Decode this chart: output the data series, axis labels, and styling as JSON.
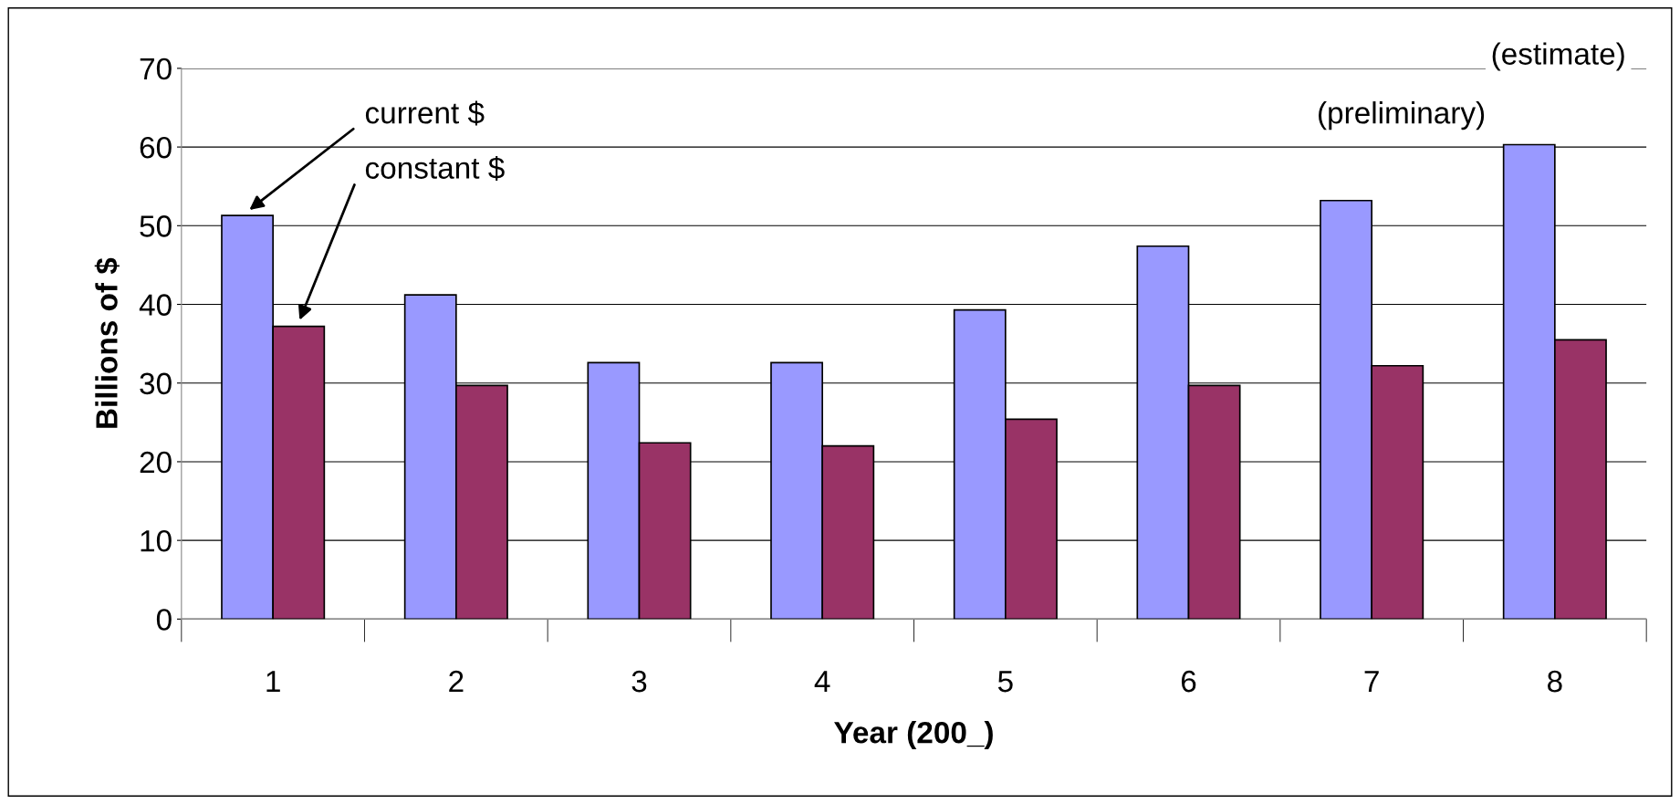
{
  "chart_data": {
    "type": "bar",
    "xlabel": "Year (200_)",
    "ylabel": "Billions of $",
    "categories": [
      "1",
      "2",
      "3",
      "4",
      "5",
      "6",
      "7",
      "8"
    ],
    "series": [
      {
        "color": "#9999ff",
        "values": [
          51.3,
          41.2,
          32.6,
          32.6,
          39.3,
          47.4,
          53.2,
          60.3
        ]
      },
      {
        "color": "#993366",
        "values": [
          37.2,
          29.7,
          22.4,
          22.0,
          25.4,
          29.7,
          32.2,
          35.5
        ]
      }
    ],
    "ylim": [
      0,
      70
    ],
    "yticks": [
      0,
      10,
      20,
      30,
      40,
      50,
      60,
      70
    ],
    "grid": "y",
    "legend": false,
    "annotations": [
      "current $",
      "constant $",
      "(estimate)",
      "(preliminary)"
    ]
  }
}
